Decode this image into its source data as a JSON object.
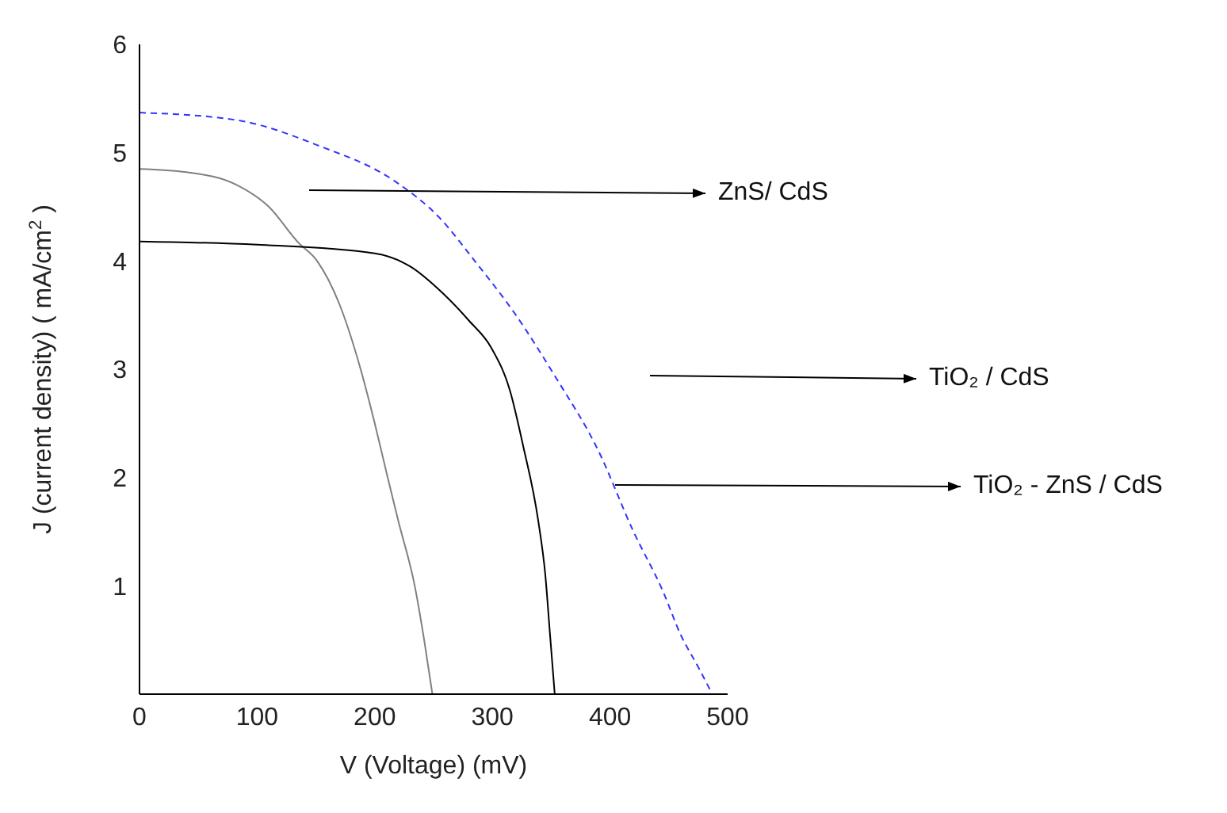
{
  "chart_data": {
    "type": "line",
    "xlabel": "V (Voltage) (mV)",
    "ylabel": "J (current density) ( mA/cm$^{2}$ )",
    "xlim": [
      0,
      500
    ],
    "xticks": [
      0,
      100,
      200,
      300,
      400,
      500
    ],
    "ylim": [
      0,
      6
    ],
    "yticks": [
      1,
      2,
      3,
      4,
      5,
      6
    ],
    "grid": false,
    "legend": false,
    "marker": "none",
    "series": [
      {
        "name": "ZnS/ CdS",
        "color": "#808080",
        "line_style": "solid",
        "x": [
          0,
          40,
          83,
          110,
          135,
          151,
          170,
          188,
          200,
          211,
          220,
          234,
          242,
          249
        ],
        "values": [
          4.85,
          4.82,
          4.7,
          4.5,
          4.17,
          4.0,
          3.6,
          3.0,
          2.5,
          2.0,
          1.6,
          1.0,
          0.5,
          0
        ]
      },
      {
        "name": "TiO₂ / CdS",
        "color": "#000000",
        "line_style": "solid",
        "x": [
          0,
          100,
          200,
          230,
          258,
          280,
          299,
          315,
          326,
          339,
          345,
          349,
          353
        ],
        "values": [
          4.18,
          4.15,
          4.07,
          3.95,
          3.7,
          3.45,
          3.2,
          2.8,
          2.3,
          1.6,
          1.1,
          0.55,
          0
        ]
      },
      {
        "name": "TiO₂ - ZnS / CdS",
        "color": "#3333ff",
        "line_style": "dashed",
        "x": [
          0,
          83,
          151,
          218,
          255,
          285,
          320,
          353,
          390,
          420,
          445,
          460,
          475,
          487
        ],
        "values": [
          5.37,
          5.3,
          5.07,
          4.73,
          4.4,
          4.0,
          3.5,
          2.94,
          2.25,
          1.5,
          0.95,
          0.55,
          0.25,
          0
        ]
      }
    ]
  }
}
